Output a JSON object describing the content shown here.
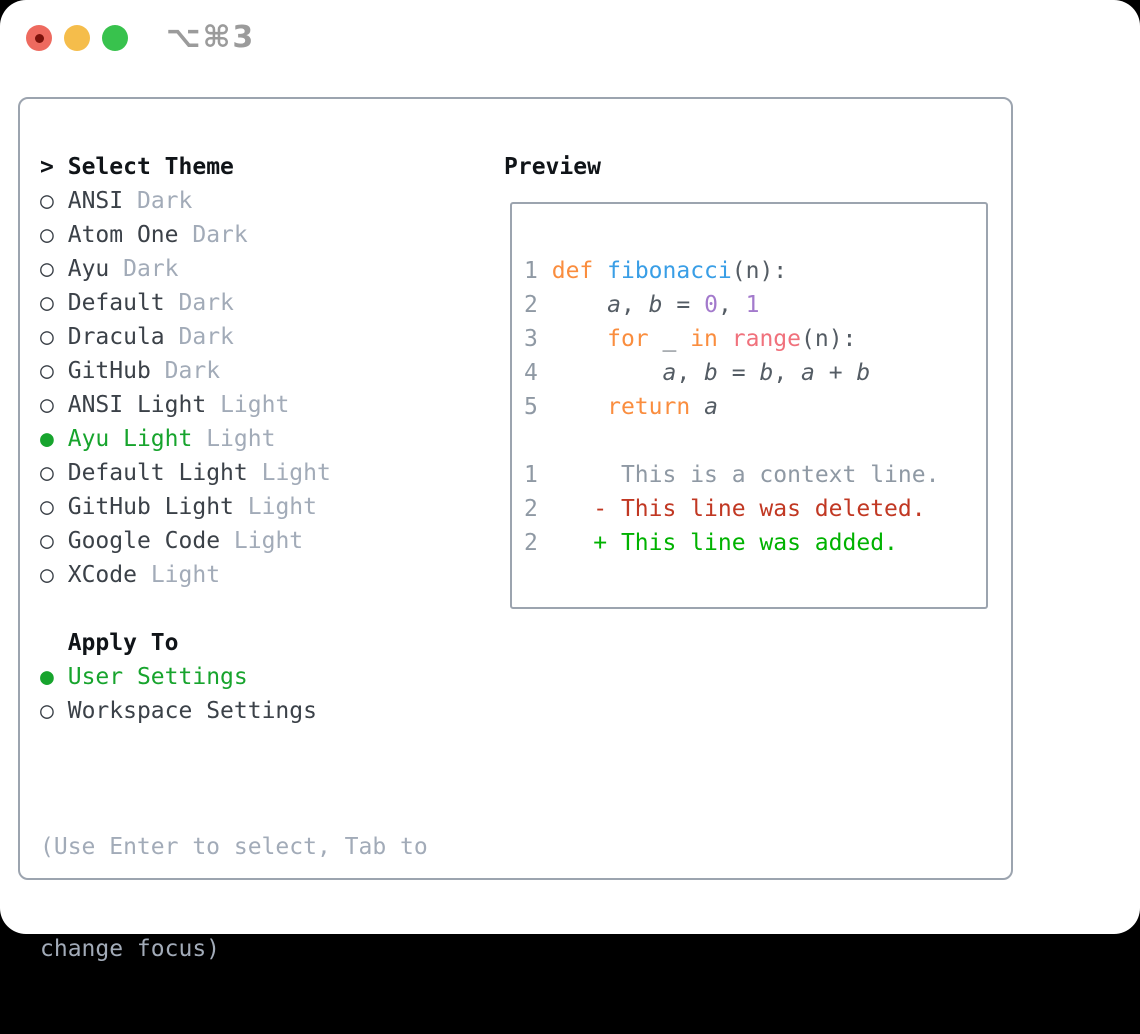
{
  "window": {
    "shortcut": "⌥⌘3"
  },
  "titlebar": {
    "buttons": [
      "close-button",
      "minimize-button",
      "zoom-button"
    ]
  },
  "glyphs": {
    "prompt": ">",
    "radio_empty": "○",
    "radio_selected": "●"
  },
  "theme_panel": {
    "title": "Select Theme",
    "items": [
      {
        "name": "ANSI",
        "tag": "Dark",
        "selected": false
      },
      {
        "name": "Atom One",
        "tag": "Dark",
        "selected": false
      },
      {
        "name": "Ayu",
        "tag": "Dark",
        "selected": false
      },
      {
        "name": "Default",
        "tag": "Dark",
        "selected": false
      },
      {
        "name": "Dracula",
        "tag": "Dark",
        "selected": false
      },
      {
        "name": "GitHub",
        "tag": "Dark",
        "selected": false
      },
      {
        "name": "ANSI Light",
        "tag": "Light",
        "selected": false
      },
      {
        "name": "Ayu Light",
        "tag": "Light",
        "selected": true
      },
      {
        "name": "Default Light",
        "tag": "Light",
        "selected": false
      },
      {
        "name": "GitHub Light",
        "tag": "Light",
        "selected": false
      },
      {
        "name": "Google Code",
        "tag": "Light",
        "selected": false
      },
      {
        "name": "XCode",
        "tag": "Light",
        "selected": false
      }
    ]
  },
  "apply_panel": {
    "title": "Apply To",
    "options": [
      {
        "name": "User Settings",
        "selected": true
      },
      {
        "name": "Workspace Settings",
        "selected": false
      }
    ]
  },
  "help": {
    "line1": "(Use Enter to select, Tab to",
    "line2": "change focus)"
  },
  "preview": {
    "title": "Preview",
    "lines": [
      {
        "kind": "code",
        "toks": [
          [
            "num",
            "1"
          ],
          [
            "pl",
            " "
          ],
          [
            "kw",
            "def"
          ],
          [
            "pl",
            " "
          ],
          [
            "fn",
            "fibonacci"
          ],
          [
            "pl",
            "(n):"
          ]
        ]
      },
      {
        "kind": "code",
        "toks": [
          [
            "num",
            "2"
          ],
          [
            "pl",
            "     "
          ],
          [
            "var",
            "a"
          ],
          [
            "pl",
            ", "
          ],
          [
            "var",
            "b"
          ],
          [
            "pl",
            " = "
          ],
          [
            "const",
            "0"
          ],
          [
            "pl",
            ", "
          ],
          [
            "const",
            "1"
          ]
        ]
      },
      {
        "kind": "code",
        "toks": [
          [
            "num",
            "3"
          ],
          [
            "pl",
            "     "
          ],
          [
            "kw",
            "for"
          ],
          [
            "pl",
            " _ "
          ],
          [
            "kw",
            "in"
          ],
          [
            "pl",
            " "
          ],
          [
            "call",
            "range"
          ],
          [
            "pl",
            "(n):"
          ]
        ]
      },
      {
        "kind": "code",
        "toks": [
          [
            "num",
            "4"
          ],
          [
            "pl",
            "         "
          ],
          [
            "var",
            "a"
          ],
          [
            "pl",
            ", "
          ],
          [
            "var",
            "b"
          ],
          [
            "pl",
            " = "
          ],
          [
            "var",
            "b"
          ],
          [
            "pl",
            ", "
          ],
          [
            "var",
            "a"
          ],
          [
            "pl",
            " + "
          ],
          [
            "var",
            "b"
          ]
        ]
      },
      {
        "kind": "code",
        "toks": [
          [
            "num",
            "5"
          ],
          [
            "pl",
            "     "
          ],
          [
            "kw",
            "return"
          ],
          [
            "pl",
            " "
          ],
          [
            "var",
            "a"
          ]
        ]
      },
      {
        "kind": "blank",
        "toks": []
      },
      {
        "kind": "context",
        "toks": [
          [
            "num",
            "1"
          ],
          [
            "pl",
            "      "
          ],
          [
            "ctx",
            "This is a context line."
          ]
        ]
      },
      {
        "kind": "deleted",
        "toks": [
          [
            "num",
            "2"
          ],
          [
            "pl",
            "    "
          ],
          [
            "del",
            "- This line was deleted."
          ]
        ]
      },
      {
        "kind": "added",
        "toks": [
          [
            "num",
            "2"
          ],
          [
            "pl",
            "    "
          ],
          [
            "add",
            "+ This line was added."
          ]
        ]
      }
    ]
  },
  "palette": {
    "green_ui": "#17a42d",
    "orange_keyword": "#fa8d3e",
    "blue_function": "#399ee6",
    "purple_constant": "#a37acc",
    "coral_builtin": "#f0717c",
    "red_deleted": "#c13823",
    "green_added": "#00b200",
    "gray_secondary": "#a2abb8",
    "gray_line_number": "#8f99a4",
    "code_foreground": "#545c64",
    "text_primary": "#3b4148",
    "heading": "#101418",
    "border_gray": "#9ca4af",
    "traffic_red": "#ee6a5f",
    "traffic_red_dot": "#7c120b",
    "traffic_yellow": "#f5bd4b",
    "traffic_green": "#38c24d",
    "title_gray": "#9b9b9b"
  }
}
